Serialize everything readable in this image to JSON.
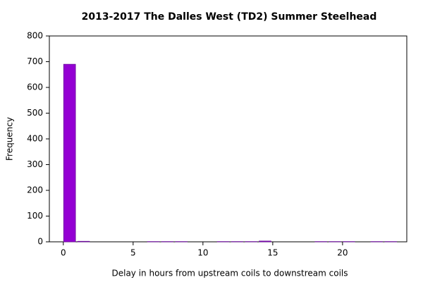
{
  "chart_data": {
    "type": "histogram",
    "title": "2013-2017 The Dalles West (TD2) Summer Steelhead",
    "x_label": "Delay in hours from upstream coils to downstream coils",
    "y_label": "Frequency",
    "bins": [
      0,
      1,
      2,
      3,
      4,
      5,
      6,
      7,
      8,
      9,
      10,
      11,
      12,
      13,
      14,
      15,
      16,
      17,
      18,
      19,
      20,
      21,
      22,
      23,
      24
    ],
    "counts": [
      690,
      2,
      0,
      0,
      0,
      0,
      1,
      1,
      1,
      0,
      0,
      1,
      1,
      1,
      3,
      0,
      0,
      0,
      1,
      1,
      1,
      0,
      1,
      1
    ],
    "color": "#9400d3",
    "edge_color": "#6a0d9a",
    "xlim": [
      -1,
      24.6
    ],
    "xticks": [
      0,
      5,
      10,
      15,
      20
    ],
    "ylim": [
      0,
      800
    ],
    "yticks": [
      0,
      100,
      200,
      300,
      400,
      500,
      600,
      700,
      800
    ],
    "grid": false
  }
}
